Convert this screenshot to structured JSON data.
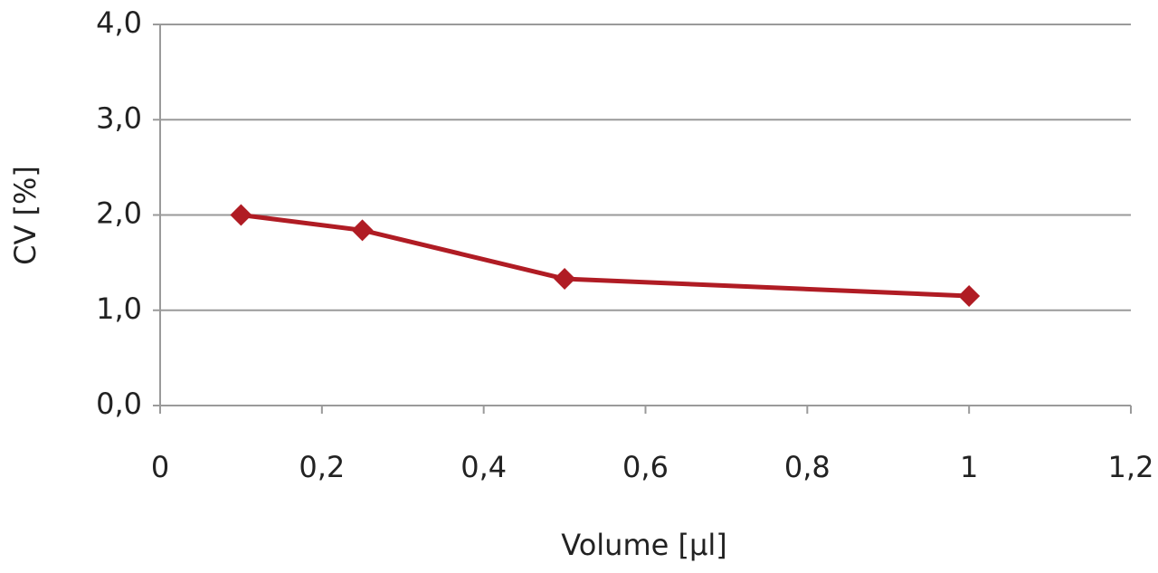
{
  "chart_data": {
    "type": "line",
    "x_label": "Volume [µl]",
    "y_label": "CV [%]",
    "x": [
      0.1,
      0.25,
      0.5,
      1
    ],
    "series": [
      {
        "name": "CV",
        "color": "#b01c24",
        "values": [
          2.0,
          1.84,
          1.33,
          1.15
        ]
      }
    ],
    "xlim": [
      0,
      1.2
    ],
    "xticks": [
      0,
      {
        "value": 0.2,
        "label": "0,2"
      },
      {
        "value": 0.4,
        "label": "0,4"
      },
      {
        "value": 0.6,
        "label": "0,6"
      },
      {
        "value": 0.8,
        "label": "0,8"
      },
      1,
      {
        "value": 1.2,
        "label": "1,2"
      }
    ],
    "ylim": [
      0,
      4
    ],
    "yticks": [
      {
        "value": 0,
        "label": "0,0"
      },
      {
        "value": 1,
        "label": "1,0"
      },
      {
        "value": 2,
        "label": "2,0"
      },
      {
        "value": 3,
        "label": "3,0"
      },
      {
        "value": 4,
        "label": "4,0"
      }
    ],
    "grid": true
  }
}
